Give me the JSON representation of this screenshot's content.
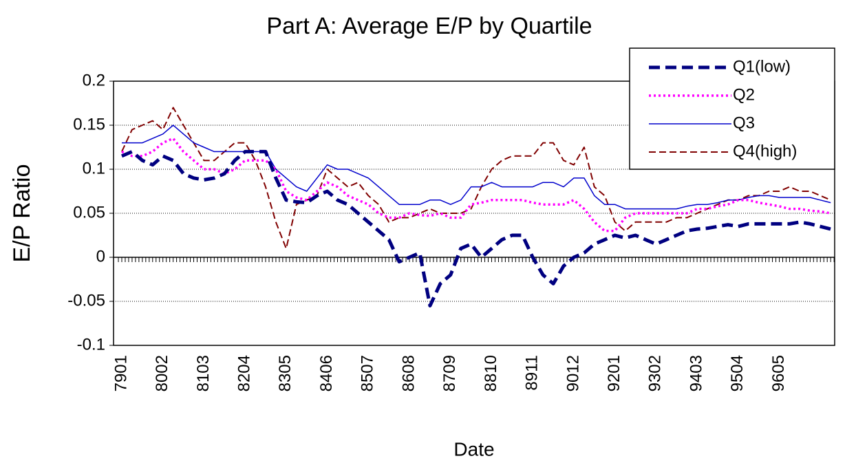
{
  "chart_data": {
    "type": "line",
    "title": "Part A: Average E/P by Quartile",
    "x_label": "Date",
    "y_label": "E/P Ratio",
    "categories": [
      "7901",
      null,
      null,
      null,
      "8002",
      null,
      null,
      null,
      "8103",
      null,
      null,
      null,
      "8204",
      null,
      null,
      null,
      "8305",
      null,
      null,
      null,
      "8406",
      null,
      null,
      null,
      "8507",
      null,
      null,
      null,
      "8608",
      null,
      null,
      null,
      "8709",
      null,
      null,
      null,
      "8810",
      null,
      null,
      null,
      "8911",
      null,
      null,
      null,
      "9012",
      null,
      null,
      null,
      "9201",
      null,
      null,
      null,
      "9302",
      null,
      null,
      null,
      "9403",
      null,
      null,
      null,
      "9504",
      null,
      null,
      null,
      "9605",
      null,
      null,
      null,
      null,
      null
    ],
    "series": [
      {
        "name": "Q1(low)",
        "color": "#000080",
        "line_style": "dashed-thick",
        "values": [
          0.115,
          0.12,
          0.11,
          0.105,
          0.115,
          0.11,
          0.095,
          0.09,
          0.088,
          0.09,
          0.095,
          0.11,
          0.12,
          0.12,
          0.12,
          0.09,
          0.065,
          0.063,
          0.062,
          0.07,
          0.075,
          0.065,
          0.06,
          0.05,
          0.04,
          0.03,
          0.02,
          -0.005,
          0.0,
          0.005,
          -0.055,
          -0.03,
          -0.02,
          0.01,
          0.015,
          0.0,
          0.01,
          0.02,
          0.025,
          0.025,
          0.0,
          -0.02,
          -0.03,
          -0.01,
          0.0,
          0.005,
          0.015,
          0.02,
          0.025,
          0.022,
          0.025,
          0.02,
          0.015,
          0.02,
          0.025,
          0.03,
          0.032,
          0.033,
          0.035,
          0.037,
          0.035,
          0.038,
          0.038,
          0.038,
          0.038,
          0.038,
          0.04,
          0.038,
          0.035,
          0.032
        ]
      },
      {
        "name": "Q2",
        "color": "#ff00ff",
        "line_style": "dotted",
        "values": [
          0.12,
          0.115,
          0.115,
          0.12,
          0.13,
          0.135,
          0.12,
          0.11,
          0.1,
          0.1,
          0.095,
          0.1,
          0.11,
          0.11,
          0.11,
          0.1,
          0.075,
          0.068,
          0.065,
          0.075,
          0.085,
          0.08,
          0.07,
          0.065,
          0.06,
          0.05,
          0.045,
          0.045,
          0.05,
          0.048,
          0.047,
          0.05,
          0.045,
          0.045,
          0.06,
          0.062,
          0.065,
          0.065,
          0.065,
          0.065,
          0.062,
          0.06,
          0.06,
          0.06,
          0.065,
          0.055,
          0.04,
          0.03,
          0.03,
          0.045,
          0.05,
          0.05,
          0.05,
          0.05,
          0.05,
          0.05,
          0.055,
          0.055,
          0.058,
          0.06,
          0.065,
          0.065,
          0.062,
          0.06,
          0.058,
          0.055,
          0.055,
          0.053,
          0.052,
          0.05
        ]
      },
      {
        "name": "Q3",
        "color": "#0000cc",
        "line_style": "solid",
        "values": [
          0.13,
          0.13,
          0.13,
          0.135,
          0.14,
          0.15,
          0.14,
          0.13,
          0.125,
          0.12,
          0.12,
          0.12,
          0.12,
          0.12,
          0.12,
          0.1,
          0.09,
          0.08,
          0.075,
          0.09,
          0.105,
          0.1,
          0.1,
          0.095,
          0.09,
          0.08,
          0.07,
          0.06,
          0.06,
          0.06,
          0.065,
          0.065,
          0.06,
          0.065,
          0.08,
          0.08,
          0.085,
          0.08,
          0.08,
          0.08,
          0.08,
          0.085,
          0.085,
          0.08,
          0.09,
          0.09,
          0.07,
          0.06,
          0.06,
          0.055,
          0.055,
          0.055,
          0.055,
          0.055,
          0.055,
          0.058,
          0.06,
          0.06,
          0.062,
          0.065,
          0.065,
          0.068,
          0.07,
          0.07,
          0.068,
          0.068,
          0.068,
          0.068,
          0.065,
          0.062
        ]
      },
      {
        "name": "Q4(high)",
        "color": "#800000",
        "line_style": "dashed",
        "values": [
          0.12,
          0.145,
          0.15,
          0.155,
          0.145,
          0.17,
          0.15,
          0.13,
          0.11,
          0.11,
          0.12,
          0.13,
          0.13,
          0.11,
          0.08,
          0.04,
          0.01,
          0.06,
          0.065,
          0.07,
          0.1,
          0.09,
          0.08,
          0.085,
          0.07,
          0.06,
          0.04,
          0.045,
          0.045,
          0.05,
          0.055,
          0.05,
          0.05,
          0.05,
          0.055,
          0.08,
          0.1,
          0.11,
          0.115,
          0.115,
          0.115,
          0.13,
          0.13,
          0.11,
          0.105,
          0.125,
          0.08,
          0.07,
          0.04,
          0.03,
          0.04,
          0.04,
          0.04,
          0.04,
          0.045,
          0.045,
          0.05,
          0.055,
          0.06,
          0.065,
          0.065,
          0.07,
          0.07,
          0.075,
          0.075,
          0.08,
          0.075,
          0.075,
          0.07,
          0.065
        ]
      }
    ],
    "ylim": [
      -0.1,
      0.2
    ],
    "yticks": [
      -0.1,
      -0.05,
      0,
      0.05,
      0.1,
      0.15,
      0.2
    ],
    "grid": true,
    "legend": "upper right"
  }
}
